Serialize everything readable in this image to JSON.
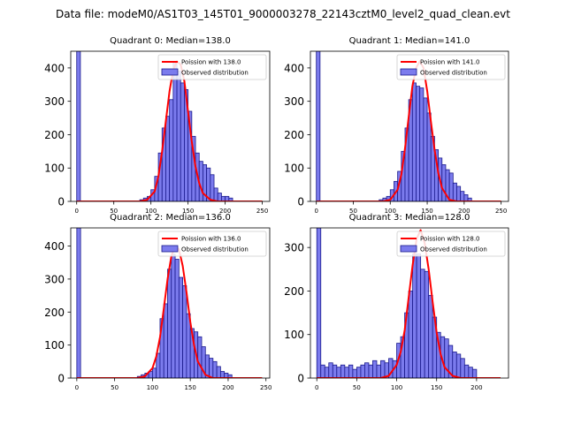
{
  "suptitle": "Data file: modeM0/AS1T03_145T01_9000003278_22143cztM0_level2_quad_clean.evt",
  "colors": {
    "bar_fill": "#7b7bed",
    "bar_edge": "#1a1a8c",
    "poisson_line": "#ff0000"
  },
  "chart_data": [
    {
      "type": "bar",
      "title": "Quadrant 0: Median=138.0",
      "xlim": [
        -8,
        260
      ],
      "ylim": [
        0,
        450
      ],
      "xticks": [
        0,
        50,
        100,
        150,
        200,
        250
      ],
      "yticks": [
        0,
        100,
        200,
        300,
        400
      ],
      "bin_width": 5,
      "bins": [
        [
          0,
          450
        ],
        [
          85,
          5
        ],
        [
          90,
          10
        ],
        [
          95,
          15
        ],
        [
          100,
          35
        ],
        [
          105,
          75
        ],
        [
          110,
          145
        ],
        [
          115,
          220
        ],
        [
          120,
          255
        ],
        [
          125,
          305
        ],
        [
          130,
          420
        ],
        [
          135,
          390
        ],
        [
          140,
          355
        ],
        [
          145,
          335
        ],
        [
          150,
          270
        ],
        [
          155,
          195
        ],
        [
          160,
          145
        ],
        [
          165,
          120
        ],
        [
          170,
          110
        ],
        [
          175,
          100
        ],
        [
          180,
          80
        ],
        [
          185,
          40
        ],
        [
          190,
          25
        ],
        [
          195,
          15
        ],
        [
          200,
          15
        ],
        [
          205,
          10
        ]
      ],
      "poisson": [
        [
          0,
          0
        ],
        [
          85,
          0
        ],
        [
          95,
          5
        ],
        [
          105,
          30
        ],
        [
          110,
          75
        ],
        [
          115,
          150
        ],
        [
          120,
          240
        ],
        [
          125,
          330
        ],
        [
          130,
          395
        ],
        [
          135,
          420
        ],
        [
          140,
          410
        ],
        [
          145,
          360
        ],
        [
          150,
          270
        ],
        [
          155,
          180
        ],
        [
          160,
          105
        ],
        [
          165,
          55
        ],
        [
          170,
          25
        ],
        [
          180,
          5
        ],
        [
          190,
          0
        ],
        [
          250,
          0
        ]
      ],
      "legend": [
        "Poission with 138.0",
        "Observed distribution"
      ]
    },
    {
      "type": "bar",
      "title": "Quadrant 1: Median=141.0",
      "xlim": [
        -8,
        260
      ],
      "ylim": [
        0,
        450
      ],
      "xticks": [
        0,
        50,
        100,
        150,
        200,
        250
      ],
      "yticks": [
        0,
        100,
        200,
        300,
        400
      ],
      "bin_width": 5,
      "bins": [
        [
          0,
          450
        ],
        [
          85,
          5
        ],
        [
          90,
          10
        ],
        [
          95,
          15
        ],
        [
          100,
          35
        ],
        [
          105,
          60
        ],
        [
          110,
          90
        ],
        [
          115,
          150
        ],
        [
          120,
          220
        ],
        [
          125,
          305
        ],
        [
          130,
          355
        ],
        [
          135,
          345
        ],
        [
          140,
          340
        ],
        [
          145,
          310
        ],
        [
          150,
          265
        ],
        [
          155,
          195
        ],
        [
          160,
          155
        ],
        [
          165,
          130
        ],
        [
          170,
          110
        ],
        [
          175,
          95
        ],
        [
          180,
          85
        ],
        [
          185,
          55
        ],
        [
          190,
          45
        ],
        [
          195,
          30
        ],
        [
          200,
          20
        ],
        [
          205,
          10
        ]
      ],
      "poisson": [
        [
          0,
          0
        ],
        [
          90,
          0
        ],
        [
          100,
          5
        ],
        [
          110,
          35
        ],
        [
          115,
          80
        ],
        [
          120,
          160
        ],
        [
          125,
          255
        ],
        [
          130,
          345
        ],
        [
          135,
          400
        ],
        [
          140,
          420
        ],
        [
          145,
          400
        ],
        [
          150,
          330
        ],
        [
          155,
          240
        ],
        [
          160,
          155
        ],
        [
          165,
          85
        ],
        [
          170,
          40
        ],
        [
          180,
          5
        ],
        [
          190,
          0
        ],
        [
          250,
          0
        ]
      ],
      "legend": [
        "Poission with 141.0",
        "Observed distribution"
      ]
    },
    {
      "type": "bar",
      "title": "Quadrant 2: Median=136.0",
      "xlim": [
        -8,
        255
      ],
      "ylim": [
        0,
        455
      ],
      "xticks": [
        0,
        50,
        100,
        150,
        200,
        250
      ],
      "yticks": [
        0,
        100,
        200,
        300,
        400
      ],
      "bin_width": 5,
      "bins": [
        [
          0,
          455
        ],
        [
          80,
          5
        ],
        [
          85,
          10
        ],
        [
          90,
          15
        ],
        [
          95,
          20
        ],
        [
          100,
          30
        ],
        [
          105,
          75
        ],
        [
          110,
          180
        ],
        [
          115,
          225
        ],
        [
          120,
          330
        ],
        [
          125,
          375
        ],
        [
          130,
          360
        ],
        [
          135,
          305
        ],
        [
          140,
          280
        ],
        [
          145,
          195
        ],
        [
          150,
          150
        ],
        [
          155,
          140
        ],
        [
          160,
          125
        ],
        [
          165,
          95
        ],
        [
          170,
          70
        ],
        [
          175,
          60
        ],
        [
          180,
          50
        ],
        [
          185,
          35
        ],
        [
          190,
          20
        ],
        [
          195,
          15
        ],
        [
          200,
          10
        ]
      ],
      "poisson": [
        [
          0,
          0
        ],
        [
          80,
          0
        ],
        [
          90,
          5
        ],
        [
          100,
          30
        ],
        [
          105,
          65
        ],
        [
          110,
          125
        ],
        [
          115,
          210
        ],
        [
          120,
          300
        ],
        [
          125,
          370
        ],
        [
          130,
          400
        ],
        [
          135,
          390
        ],
        [
          140,
          340
        ],
        [
          145,
          260
        ],
        [
          150,
          170
        ],
        [
          155,
          100
        ],
        [
          160,
          50
        ],
        [
          170,
          10
        ],
        [
          180,
          0
        ],
        [
          245,
          0
        ]
      ],
      "legend": [
        "Poission with 136.0",
        "Observed distribution"
      ]
    },
    {
      "type": "bar",
      "title": "Quadrant 3: Median=128.0",
      "xlim": [
        -8,
        240
      ],
      "ylim": [
        0,
        345
      ],
      "xticks": [
        0,
        50,
        100,
        150,
        200
      ],
      "yticks": [
        0,
        100,
        200,
        300
      ],
      "bin_width": 5,
      "bins": [
        [
          0,
          345
        ],
        [
          5,
          30
        ],
        [
          10,
          25
        ],
        [
          15,
          35
        ],
        [
          20,
          30
        ],
        [
          25,
          25
        ],
        [
          30,
          30
        ],
        [
          35,
          25
        ],
        [
          40,
          30
        ],
        [
          45,
          20
        ],
        [
          50,
          25
        ],
        [
          55,
          30
        ],
        [
          60,
          35
        ],
        [
          65,
          30
        ],
        [
          70,
          40
        ],
        [
          75,
          30
        ],
        [
          80,
          40
        ],
        [
          85,
          35
        ],
        [
          90,
          45
        ],
        [
          95,
          40
        ],
        [
          100,
          80
        ],
        [
          105,
          95
        ],
        [
          110,
          150
        ],
        [
          115,
          200
        ],
        [
          120,
          285
        ],
        [
          125,
          285
        ],
        [
          130,
          250
        ],
        [
          135,
          245
        ],
        [
          140,
          190
        ],
        [
          145,
          140
        ],
        [
          150,
          105
        ],
        [
          155,
          95
        ],
        [
          160,
          90
        ],
        [
          165,
          75
        ],
        [
          170,
          60
        ],
        [
          175,
          55
        ],
        [
          180,
          45
        ],
        [
          185,
          30
        ],
        [
          190,
          25
        ],
        [
          195,
          20
        ]
      ],
      "poisson": [
        [
          0,
          0
        ],
        [
          80,
          0
        ],
        [
          90,
          5
        ],
        [
          100,
          30
        ],
        [
          105,
          60
        ],
        [
          110,
          110
        ],
        [
          115,
          185
        ],
        [
          120,
          260
        ],
        [
          125,
          320
        ],
        [
          130,
          340
        ],
        [
          135,
          310
        ],
        [
          140,
          250
        ],
        [
          145,
          175
        ],
        [
          150,
          105
        ],
        [
          155,
          55
        ],
        [
          160,
          25
        ],
        [
          170,
          5
        ],
        [
          180,
          0
        ],
        [
          230,
          0
        ]
      ],
      "legend": [
        "Poission with 128.0",
        "Observed distribution"
      ]
    }
  ]
}
